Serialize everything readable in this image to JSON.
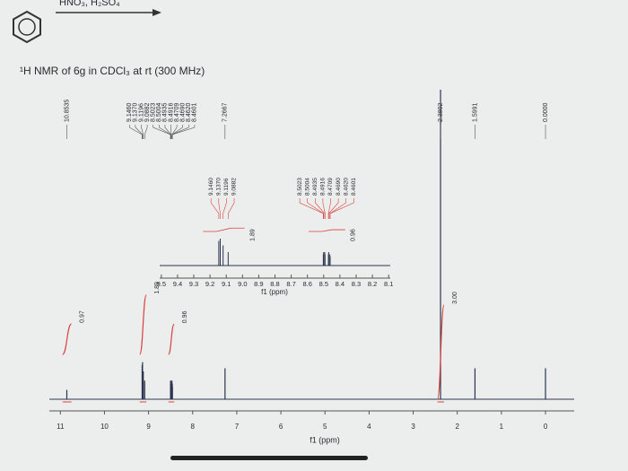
{
  "reagents": "HNO₃, H₂SO₄",
  "chart_data": {
    "type": "spectrum",
    "title": "¹H NMR of 6g in CDCl₃ at rt (300 MHz)",
    "x_label": "f1 (ppm)",
    "xlim": [
      11.25,
      -0.65
    ],
    "xticks": [
      11,
      10,
      9,
      8,
      7,
      6,
      5,
      4,
      3,
      2,
      1,
      0
    ],
    "ylim": [
      0,
      100
    ],
    "color": "#2c3550",
    "integral_color": "#d9413f",
    "peaks": {
      "x": [
        10.8535,
        9.146,
        9.137,
        9.1196,
        9.0882,
        8.5023,
        8.5004,
        8.4935,
        8.4916,
        8.4709,
        8.469,
        8.462,
        8.4601,
        7.2667,
        2.3802,
        1.5991,
        0
      ],
      "x_labels": [
        "10.8535",
        "9.1460",
        "9.1370",
        "9.1196",
        "9.0882",
        "8.5023",
        "8.5004",
        "8.4935",
        "8.4916",
        "8.4709",
        "8.4690",
        "8.4620",
        "8.4601",
        "7.2667",
        "2.3802",
        "1.5991",
        "0.0000"
      ],
      "values": [
        3,
        11,
        12,
        9,
        6,
        5,
        6,
        6,
        5,
        5,
        6,
        5,
        4,
        10,
        100,
        10,
        10
      ]
    },
    "integrals": {
      "values": [
        0.97,
        1.89,
        0.96,
        3
      ],
      "value_labels": [
        "0.97",
        "1.89",
        "0.96",
        "3.00"
      ],
      "ranges": [
        [
          10.95,
          10.75
        ],
        [
          9.2,
          9.05
        ],
        [
          8.55,
          8.42
        ],
        [
          2.45,
          2.3
        ]
      ]
    },
    "inset": {
      "x_label": "f1 (ppm)",
      "xlim": [
        9.51,
        8.09
      ],
      "xticks": [
        9.5,
        9.4,
        9.3,
        9.2,
        9.1,
        {
          "value": 9,
          "label": "9.0"
        },
        8.9,
        8.8,
        8.7,
        8.6,
        8.5,
        8.4,
        8.3,
        8.2,
        8.1
      ],
      "ylim": [
        0,
        20
      ],
      "integrals": {
        "values": [
          1.89,
          0.96
        ],
        "ranges": [
          [
            9.16,
            9.07
          ],
          [
            8.51,
            8.45
          ]
        ]
      }
    }
  }
}
